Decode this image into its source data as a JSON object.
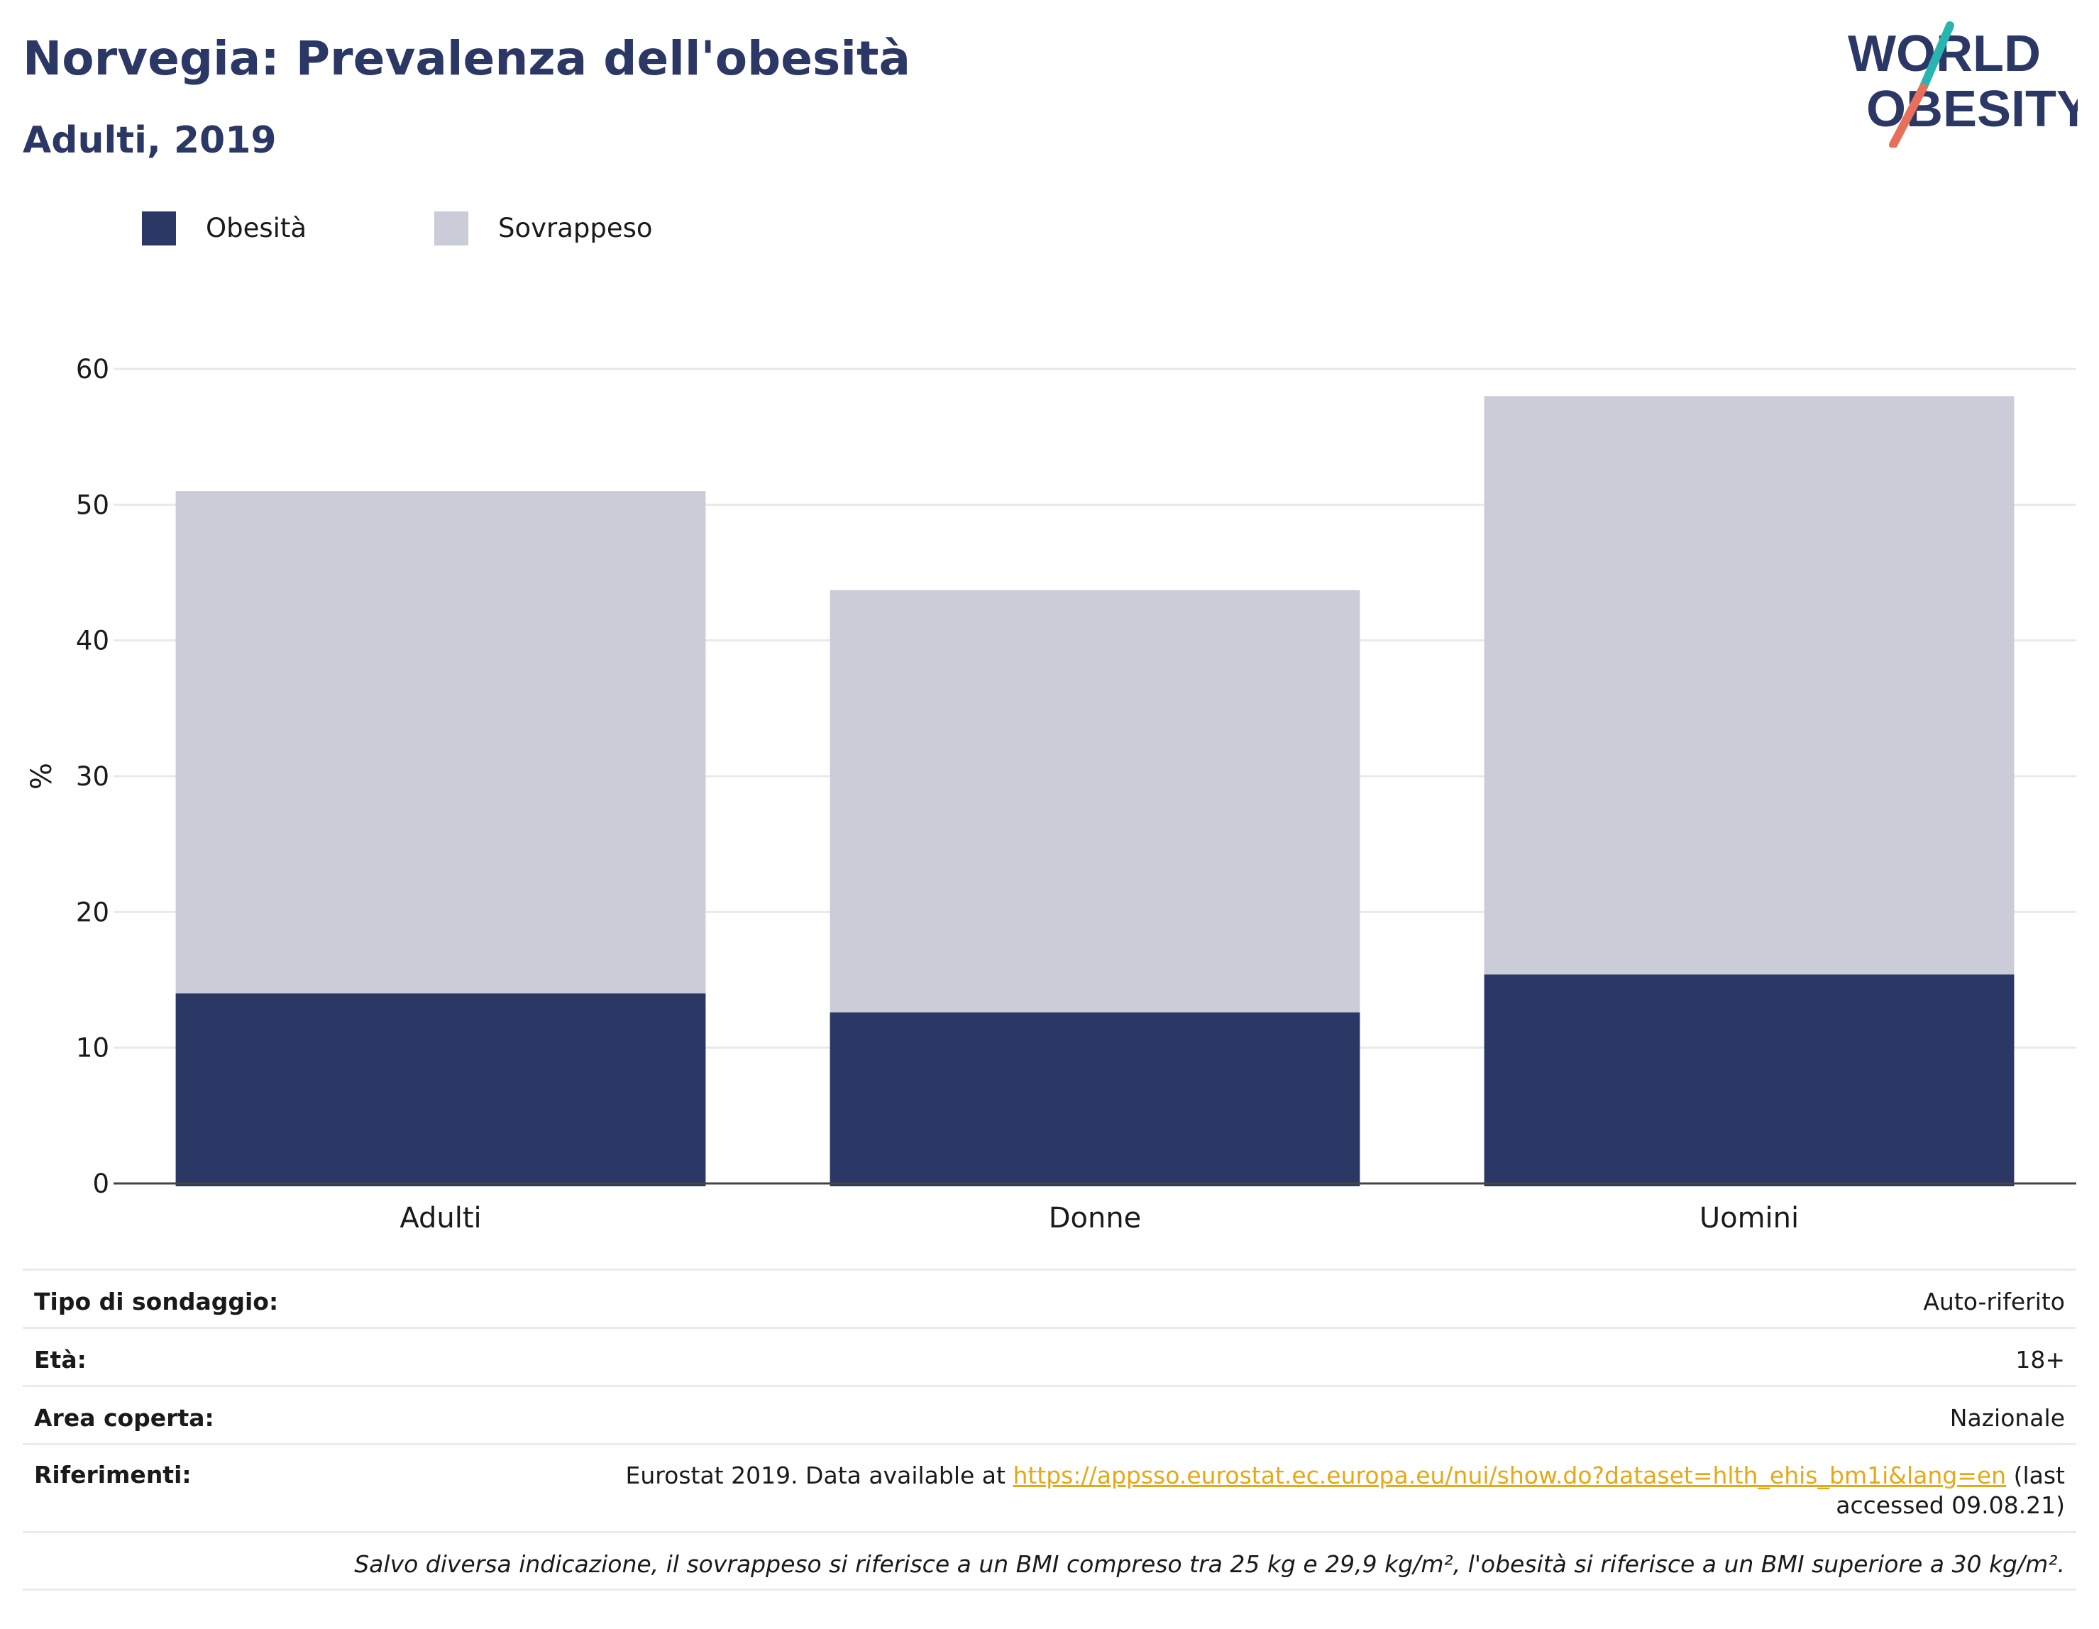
{
  "header": {
    "title": "Norvegia: Prevalenza dell'obesità",
    "subtitle": "Adulti, 2019"
  },
  "logo": {
    "line1": "WORLD",
    "line2": "OBESITY",
    "slash_colors": [
      "#2ab4b0",
      "#e8705a"
    ],
    "text_color": "#2b3764"
  },
  "chart_data": {
    "type": "bar",
    "stacked": true,
    "categories": [
      "Adulti",
      "Donne",
      "Uomini"
    ],
    "series": [
      {
        "name": "Obesità",
        "color": "#2b3764",
        "values": [
          14.0,
          12.6,
          15.4
        ]
      },
      {
        "name": "Sovrappeso",
        "color": "#caccd8",
        "values": [
          37.0,
          31.1,
          42.6
        ]
      }
    ],
    "ylabel": "%",
    "ylim": [
      0,
      60
    ],
    "yticks": [
      0,
      10,
      20,
      30,
      40,
      50,
      60
    ],
    "grid": true,
    "legend": "top-left"
  },
  "info": {
    "survey_type_label": "Tipo di sondaggio:",
    "survey_type_value": "Auto-riferito",
    "age_label": "Età:",
    "age_value": "18+",
    "area_label": "Area coperta:",
    "area_value": "Nazionale",
    "references_label": "Riferimenti:",
    "references_prefix": "Eurostat 2019. Data available at ",
    "references_link": "https://appsso.eurostat.ec.europa.eu/nui/show.do?dataset=hlth_ehis_bm1i&lang=en",
    "references_suffix": " (last accessed 09.08.21)",
    "footnote": "Salvo diversa indicazione, il sovrappeso si riferisce a un BMI compreso tra 25 kg e 29,9 kg/m², l'obesità si riferisce a un BMI superiore a 30 kg/m²."
  }
}
